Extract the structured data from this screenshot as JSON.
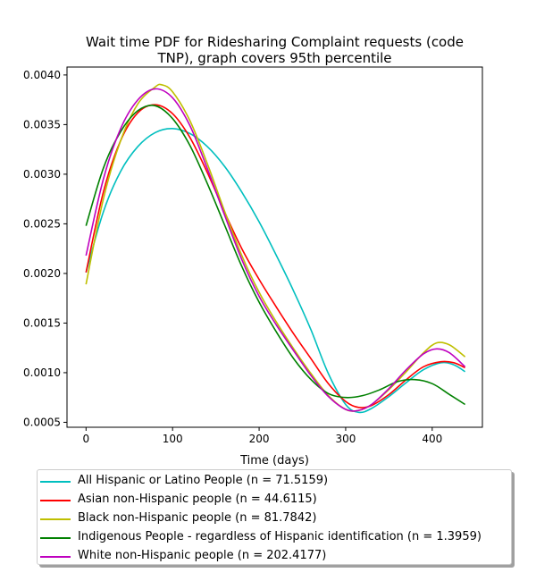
{
  "chart_data": {
    "type": "line",
    "title": "Wait time PDF for Ridesharing Complaint  requests (code TNP), graph covers 95th percentile",
    "title_lines": [
      "Wait time PDF for Ridesharing Complaint  requests (code",
      "TNP), graph covers 95th percentile"
    ],
    "xlabel": "Time (days)",
    "ylabel": "",
    "xlim": [
      -22,
      458
    ],
    "ylim": [
      0.00045,
      0.00408
    ],
    "xticks": [
      0,
      100,
      200,
      300,
      400
    ],
    "xtick_labels": [
      "0",
      "100",
      "200",
      "300",
      "400"
    ],
    "yticks": [
      0.0005,
      0.001,
      0.0015,
      0.002,
      0.0025,
      0.003,
      0.0035,
      0.004
    ],
    "ytick_labels": [
      "0.0005",
      "0.0010",
      "0.0015",
      "0.0020",
      "0.0025",
      "0.0030",
      "0.0035",
      "0.0040"
    ],
    "grid": false,
    "legend_position": "below",
    "series": [
      {
        "name": "All Hispanic or Latino People (n = 71.5159)",
        "color": "#00bfbf",
        "points": [
          [
            0,
            0.00201
          ],
          [
            20,
            0.00262
          ],
          [
            40,
            0.00303
          ],
          [
            60,
            0.00328
          ],
          [
            80,
            0.00342
          ],
          [
            100,
            0.00346
          ],
          [
            120,
            0.00341
          ],
          [
            140,
            0.00328
          ],
          [
            160,
            0.00308
          ],
          [
            180,
            0.00282
          ],
          [
            200,
            0.00252
          ],
          [
            220,
            0.00218
          ],
          [
            240,
            0.00182
          ],
          [
            260,
            0.00143
          ],
          [
            280,
            0.00099
          ],
          [
            300,
            0.00068
          ],
          [
            315,
            0.0006
          ],
          [
            330,
            0.00064
          ],
          [
            350,
            0.00076
          ],
          [
            370,
            0.0009
          ],
          [
            390,
            0.00103
          ],
          [
            410,
            0.0011
          ],
          [
            425,
            0.00108
          ],
          [
            438,
            0.00101
          ]
        ]
      },
      {
        "name": "Asian non-Hispanic people (n = 44.6115)",
        "color": "#ff0000",
        "points": [
          [
            0,
            0.00201
          ],
          [
            20,
            0.00282
          ],
          [
            40,
            0.00334
          ],
          [
            60,
            0.00362
          ],
          [
            80,
            0.0037
          ],
          [
            100,
            0.00361
          ],
          [
            120,
            0.00337
          ],
          [
            140,
            0.00302
          ],
          [
            160,
            0.00262
          ],
          [
            180,
            0.00225
          ],
          [
            200,
            0.00194
          ],
          [
            220,
            0.00166
          ],
          [
            240,
            0.00139
          ],
          [
            260,
            0.00114
          ],
          [
            280,
            0.00089
          ],
          [
            300,
            0.00071
          ],
          [
            315,
            0.00065
          ],
          [
            330,
            0.00067
          ],
          [
            350,
            0.00078
          ],
          [
            370,
            0.00093
          ],
          [
            390,
            0.00106
          ],
          [
            410,
            0.00111
          ],
          [
            425,
            0.0011
          ],
          [
            438,
            0.00105
          ]
        ]
      },
      {
        "name": "Black non-Hispanic people (n = 81.7842)",
        "color": "#bfbf00",
        "points": [
          [
            0,
            0.00189
          ],
          [
            20,
            0.00275
          ],
          [
            40,
            0.00334
          ],
          [
            60,
            0.00371
          ],
          [
            80,
            0.00388
          ],
          [
            88,
            0.0039
          ],
          [
            100,
            0.00383
          ],
          [
            120,
            0.00354
          ],
          [
            140,
            0.00311
          ],
          [
            160,
            0.00263
          ],
          [
            180,
            0.00218
          ],
          [
            200,
            0.00181
          ],
          [
            220,
            0.00151
          ],
          [
            240,
            0.00124
          ],
          [
            260,
            0.00099
          ],
          [
            280,
            0.00077
          ],
          [
            300,
            0.00063
          ],
          [
            315,
            0.00062
          ],
          [
            330,
            0.00068
          ],
          [
            350,
            0.00083
          ],
          [
            370,
            0.00101
          ],
          [
            390,
            0.0012
          ],
          [
            405,
            0.0013
          ],
          [
            420,
            0.00128
          ],
          [
            438,
            0.00116
          ]
        ]
      },
      {
        "name": "Indigenous People - regardless of Hispanic identification (n = 1.3959)",
        "color": "#008000",
        "points": [
          [
            0,
            0.00248
          ],
          [
            20,
            0.00306
          ],
          [
            40,
            0.00343
          ],
          [
            60,
            0.00364
          ],
          [
            80,
            0.00369
          ],
          [
            100,
            0.00356
          ],
          [
            120,
            0.00329
          ],
          [
            140,
            0.00291
          ],
          [
            160,
            0.00249
          ],
          [
            180,
            0.00207
          ],
          [
            200,
            0.00171
          ],
          [
            220,
            0.00141
          ],
          [
            240,
            0.00114
          ],
          [
            260,
            0.00093
          ],
          [
            280,
            0.00079
          ],
          [
            300,
            0.00075
          ],
          [
            320,
            0.00077
          ],
          [
            340,
            0.00083
          ],
          [
            360,
            0.00091
          ],
          [
            380,
            0.00093
          ],
          [
            400,
            0.00089
          ],
          [
            420,
            0.00078
          ],
          [
            438,
            0.00068
          ]
        ]
      },
      {
        "name": "White non-Hispanic people (n = 202.4177)",
        "color": "#bf00bf",
        "points": [
          [
            0,
            0.00218
          ],
          [
            20,
            0.00295
          ],
          [
            40,
            0.00346
          ],
          [
            60,
            0.00375
          ],
          [
            80,
            0.00386
          ],
          [
            100,
            0.00377
          ],
          [
            120,
            0.00349
          ],
          [
            140,
            0.00306
          ],
          [
            160,
            0.00259
          ],
          [
            180,
            0.00214
          ],
          [
            200,
            0.00177
          ],
          [
            220,
            0.00148
          ],
          [
            240,
            0.00122
          ],
          [
            260,
            0.00097
          ],
          [
            280,
            0.00076
          ],
          [
            300,
            0.00063
          ],
          [
            315,
            0.00062
          ],
          [
            330,
            0.00068
          ],
          [
            350,
            0.00084
          ],
          [
            370,
            0.00103
          ],
          [
            390,
            0.00119
          ],
          [
            405,
            0.00124
          ],
          [
            420,
            0.0012
          ],
          [
            438,
            0.00106
          ]
        ]
      }
    ]
  }
}
